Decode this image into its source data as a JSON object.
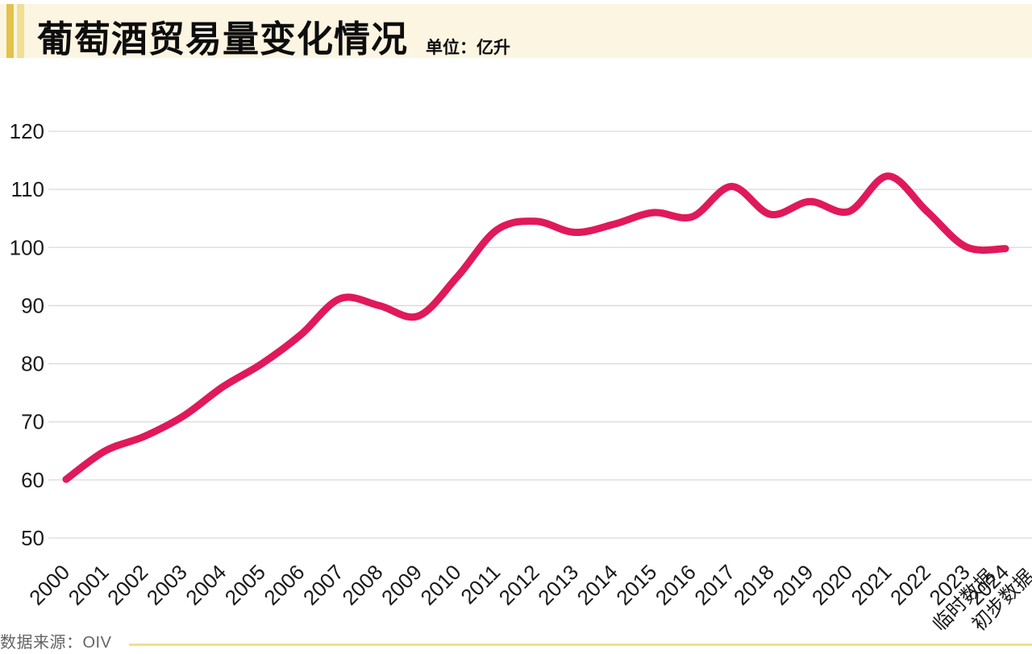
{
  "header": {
    "title": "葡萄酒贸易量变化情况",
    "unit_label": "单位：亿升"
  },
  "footer": {
    "source_label": "数据来源：OIV"
  },
  "colors": {
    "line": "#e0195a",
    "grid": "#d9d9d9",
    "tick_text": "#1a1a1a",
    "header_band": "#fcf5e2",
    "accent_bar_dark": "#e4c24b",
    "accent_bar_light": "#f1df92",
    "footer_rule": "#eae18e"
  },
  "chart_data": {
    "type": "line",
    "title": "葡萄酒贸易量变化情况",
    "unit": "亿升",
    "source": "OIV",
    "grid": true,
    "legend": "none",
    "ylim": [
      50,
      120
    ],
    "yticks": [
      120,
      110,
      100,
      90,
      80,
      70,
      60,
      50
    ],
    "x_labels": [
      {
        "year": "2000",
        "note": ""
      },
      {
        "year": "2001",
        "note": ""
      },
      {
        "year": "2002",
        "note": ""
      },
      {
        "year": "2003",
        "note": ""
      },
      {
        "year": "2004",
        "note": ""
      },
      {
        "year": "2005",
        "note": ""
      },
      {
        "year": "2006",
        "note": ""
      },
      {
        "year": "2007",
        "note": ""
      },
      {
        "year": "2008",
        "note": ""
      },
      {
        "year": "2009",
        "note": ""
      },
      {
        "year": "2010",
        "note": ""
      },
      {
        "year": "2011",
        "note": ""
      },
      {
        "year": "2012",
        "note": ""
      },
      {
        "year": "2013",
        "note": ""
      },
      {
        "year": "2014",
        "note": ""
      },
      {
        "year": "2015",
        "note": ""
      },
      {
        "year": "2016",
        "note": ""
      },
      {
        "year": "2017",
        "note": ""
      },
      {
        "year": "2018",
        "note": ""
      },
      {
        "year": "2019",
        "note": ""
      },
      {
        "year": "2020",
        "note": ""
      },
      {
        "year": "2021",
        "note": ""
      },
      {
        "year": "2022",
        "note": ""
      },
      {
        "year": "2023",
        "note": "临时数据"
      },
      {
        "year": "2024",
        "note": "初步数据"
      }
    ],
    "values": [
      60.1,
      65,
      67.5,
      71,
      76,
      80,
      85,
      91.2,
      90,
      88.2,
      95,
      103,
      104.5,
      102.6,
      104,
      106,
      105.3,
      110.5,
      105.7,
      107.9,
      106.2,
      112.3,
      106.2,
      100.1,
      99.8
    ]
  }
}
